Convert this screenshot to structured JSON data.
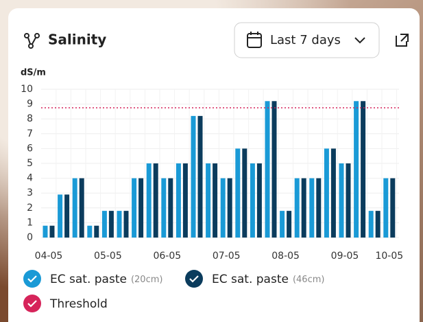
{
  "chart_data": {
    "type": "bar",
    "title": "Salinity",
    "range_control": "Last 7 days",
    "unit": "dS/m",
    "categories": [
      "04-05",
      null,
      null,
      null,
      "05-05",
      null,
      null,
      null,
      "06-05",
      null,
      null,
      null,
      "07-05",
      null,
      null,
      null,
      "08-05",
      null,
      null,
      null,
      "09-05",
      null,
      null,
      "10-05"
    ],
    "series": [
      {
        "name": "EC sat. paste",
        "depth": "(20cm)",
        "color": "#1a9ad6",
        "values": [
          0.8,
          2.9,
          4.0,
          0.8,
          1.8,
          1.8,
          4.0,
          5.0,
          4.0,
          5.0,
          8.2,
          5.0,
          4.0,
          6.0,
          5.0,
          9.2,
          1.8,
          4.0,
          4.0,
          6.0,
          5.0,
          9.2,
          1.8,
          4.0
        ]
      },
      {
        "name": "EC sat. paste",
        "depth": "(46cm)",
        "color": "#0b3c5d",
        "values": [
          0.8,
          2.9,
          4.0,
          0.8,
          1.8,
          1.8,
          4.0,
          5.0,
          4.0,
          5.0,
          8.2,
          5.0,
          4.0,
          6.0,
          5.0,
          9.2,
          1.8,
          4.0,
          4.0,
          6.0,
          5.0,
          9.2,
          1.8,
          4.0
        ]
      }
    ],
    "threshold": {
      "name": "Threshold",
      "value": 8.75,
      "color": "#d6245a"
    },
    "ylim": [
      0,
      10
    ],
    "yticks": [
      0,
      1,
      2,
      3,
      4,
      5,
      6,
      7,
      8,
      9,
      10
    ],
    "grid": true
  }
}
